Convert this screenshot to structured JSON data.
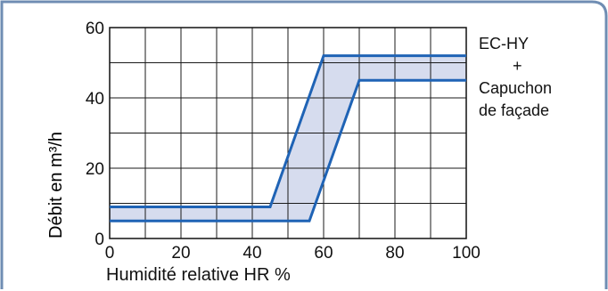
{
  "chart_data": {
    "type": "area",
    "title": "",
    "xlabel": "Humidité relative HR %",
    "ylabel": "Débit en m³/h",
    "xlim": [
      0,
      100
    ],
    "ylim": [
      0,
      60
    ],
    "x_ticks": [
      0,
      20,
      40,
      60,
      80,
      100
    ],
    "y_ticks": [
      0,
      20,
      40,
      60
    ],
    "x_grid_step": 10,
    "y_grid_step": 10,
    "grid": true,
    "series": [
      {
        "x": [
          0,
          45,
          60,
          100
        ],
        "y": [
          9,
          9,
          52,
          52
        ]
      },
      {
        "x": [
          0,
          56,
          70,
          100
        ],
        "y": [
          5,
          5,
          45,
          45
        ]
      }
    ],
    "band_fill": "#d6dcee",
    "line_color": "#1f63b5",
    "annotation_lines": [
      "EC-HY",
      "+",
      "Capuchon",
      "de façade"
    ]
  },
  "frame_color": "#6f8db3"
}
